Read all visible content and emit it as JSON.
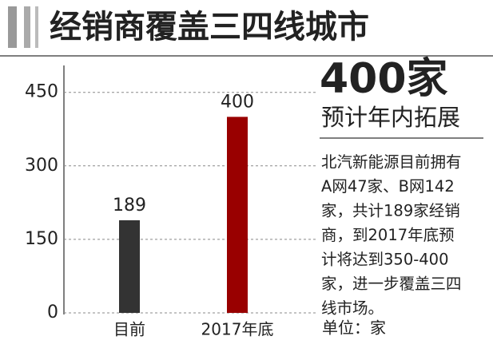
{
  "chart_data": {
    "type": "bar",
    "title": "经销商覆盖三四线城市",
    "categories": [
      "目前",
      "2017年底"
    ],
    "values": [
      189,
      400
    ],
    "colors": [
      "#333333",
      "#990000"
    ],
    "ylim": [
      0,
      500
    ],
    "yticks": [
      0,
      150,
      300,
      450
    ],
    "grid": true,
    "annotations": {
      "headline": "400家",
      "subhead": "预计年内拓展",
      "description": [
        "北汽新能源目前拥有",
        "A网47家、B网142",
        "家，共计189家经销",
        "商，到2017年底预",
        "计将达到350-400",
        "家，进一步覆盖三四",
        "线市场。"
      ],
      "unit": "单位：家"
    }
  }
}
